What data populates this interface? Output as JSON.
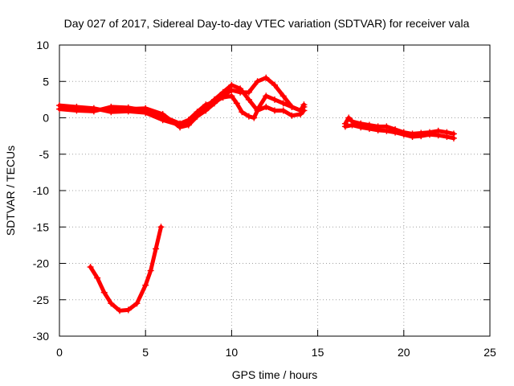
{
  "chart_data": {
    "type": "scatter",
    "title": "Day 027 of 2017, Sidereal Day-to-day VTEC variation (SDTVAR) for receiver vala",
    "xlabel": "GPS time / hours",
    "ylabel": "SDTVAR / TECUs",
    "xlim": [
      0,
      25
    ],
    "ylim": [
      -30,
      10
    ],
    "xticks": [
      0,
      5,
      10,
      15,
      20,
      25
    ],
    "yticks": [
      -30,
      -25,
      -20,
      -15,
      -10,
      -5,
      0,
      5,
      10
    ],
    "xtick_labels": [
      "0",
      "5",
      "10",
      "15",
      "20",
      "25"
    ],
    "ytick_labels": [
      "-30",
      "-25",
      "-20",
      "-15",
      "-10",
      "-5",
      "0",
      "5",
      "10"
    ],
    "grid": true,
    "legend": "none",
    "series": [
      {
        "name": "satellite-track-1",
        "color": "#ff0000",
        "points": [
          [
            0,
            1.7
          ],
          [
            1,
            1.5
          ],
          [
            2,
            1.3
          ],
          [
            3,
            0.8
          ],
          [
            4,
            0.9
          ],
          [
            5,
            0.7
          ],
          [
            6,
            -0.3
          ],
          [
            7,
            -1.0
          ],
          [
            7.5,
            -0.5
          ],
          [
            8,
            0.5
          ],
          [
            8.5,
            1.5
          ],
          [
            9,
            2.5
          ],
          [
            9.5,
            3.5
          ],
          [
            10,
            4.5
          ],
          [
            10.5,
            4.0
          ],
          [
            11,
            2.5
          ],
          [
            11.5,
            1.0
          ],
          [
            12,
            1.5
          ],
          [
            12.5,
            1.0
          ],
          [
            13,
            1.0
          ],
          [
            13.5,
            0.3
          ],
          [
            14,
            0.5
          ],
          [
            14.2,
            1.0
          ]
        ]
      },
      {
        "name": "satellite-track-2",
        "color": "#ff0000",
        "points": [
          [
            0,
            1.2
          ],
          [
            1,
            1.0
          ],
          [
            2,
            0.9
          ],
          [
            3,
            1.5
          ],
          [
            4,
            1.4
          ],
          [
            5,
            1.0
          ],
          [
            6,
            0.2
          ],
          [
            7,
            -0.8
          ],
          [
            7.5,
            -0.3
          ],
          [
            8,
            0.8
          ],
          [
            8.5,
            1.8
          ],
          [
            9,
            2.2
          ],
          [
            9.5,
            2.8
          ],
          [
            10,
            3.0
          ],
          [
            10.3,
            2.0
          ],
          [
            10.6,
            0.8
          ],
          [
            11,
            0.2
          ],
          [
            11.3,
            0.0
          ],
          [
            11.6,
            1.5
          ],
          [
            12,
            3.0
          ],
          [
            12.5,
            2.5
          ],
          [
            13,
            2.0
          ],
          [
            13.5,
            1.5
          ],
          [
            14,
            1.0
          ],
          [
            14.2,
            1.5
          ]
        ]
      },
      {
        "name": "satellite-track-3",
        "color": "#ff0000",
        "points": [
          [
            3,
            1.1
          ],
          [
            4,
            1.2
          ],
          [
            5,
            1.3
          ],
          [
            6,
            0.5
          ],
          [
            7,
            -1.3
          ],
          [
            7.5,
            -1.0
          ],
          [
            8,
            0.2
          ],
          [
            8.5,
            1.0
          ],
          [
            9,
            2.0
          ],
          [
            9.5,
            3.0
          ],
          [
            10,
            3.8
          ],
          [
            10.5,
            3.5
          ],
          [
            11,
            3.5
          ],
          [
            11.5,
            5.0
          ],
          [
            12,
            5.5
          ],
          [
            12.5,
            4.5
          ],
          [
            13,
            3.0
          ],
          [
            13.5,
            1.5
          ],
          [
            14,
            1.0
          ],
          [
            14.2,
            1.8
          ]
        ]
      },
      {
        "name": "satellite-track-4",
        "color": "#ff0000",
        "points": [
          [
            16.6,
            -0.8
          ],
          [
            16.8,
            0.0
          ],
          [
            17,
            -0.5
          ],
          [
            17.5,
            -0.8
          ],
          [
            18,
            -1.0
          ],
          [
            18.5,
            -1.2
          ],
          [
            19,
            -1.2
          ],
          [
            19.5,
            -1.6
          ],
          [
            20,
            -2.0
          ],
          [
            20.5,
            -2.2
          ],
          [
            21,
            -2.1
          ],
          [
            21.5,
            -2.0
          ],
          [
            22,
            -1.8
          ],
          [
            22.5,
            -2.0
          ],
          [
            22.9,
            -2.2
          ]
        ]
      },
      {
        "name": "satellite-track-5",
        "color": "#ff0000",
        "points": [
          [
            16.6,
            -1.2
          ],
          [
            17,
            -1.0
          ],
          [
            17.5,
            -1.3
          ],
          [
            18,
            -1.5
          ],
          [
            18.5,
            -1.7
          ],
          [
            19,
            -1.8
          ],
          [
            19.5,
            -2.0
          ],
          [
            20,
            -2.3
          ],
          [
            20.5,
            -2.6
          ],
          [
            21,
            -2.5
          ],
          [
            21.5,
            -2.3
          ],
          [
            22,
            -2.4
          ],
          [
            22.5,
            -2.6
          ],
          [
            22.9,
            -2.8
          ]
        ]
      },
      {
        "name": "satellite-track-6",
        "color": "#ff0000",
        "points": [
          [
            1.8,
            -20.5
          ],
          [
            2.2,
            -22.0
          ],
          [
            2.6,
            -24.0
          ],
          [
            3.0,
            -25.5
          ],
          [
            3.5,
            -26.5
          ],
          [
            4.0,
            -26.4
          ],
          [
            4.5,
            -25.5
          ],
          [
            5.0,
            -23.0
          ],
          [
            5.3,
            -21.0
          ],
          [
            5.6,
            -18.0
          ],
          [
            5.9,
            -15.0
          ]
        ]
      }
    ]
  }
}
